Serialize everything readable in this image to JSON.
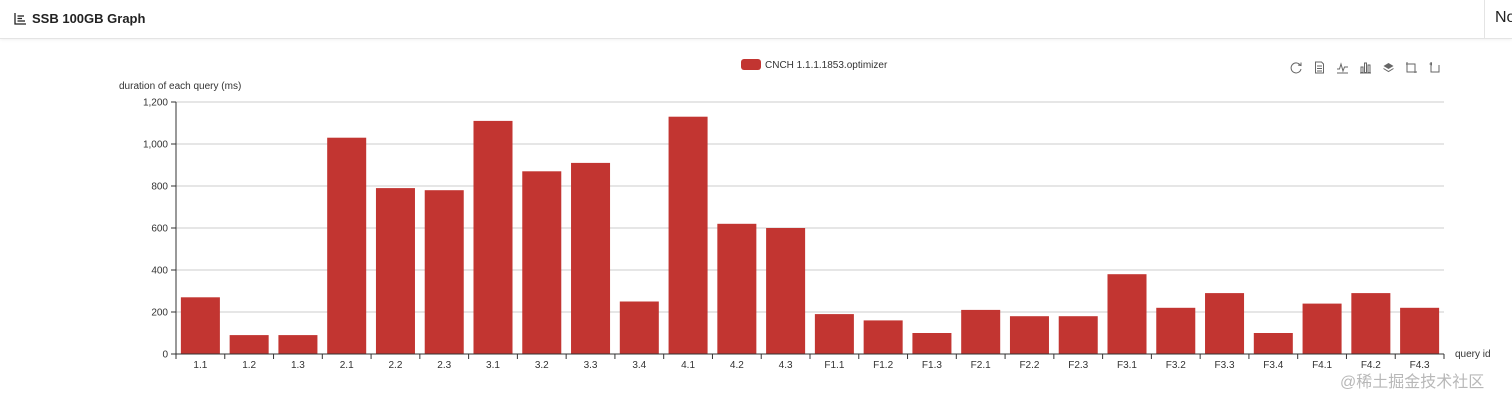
{
  "header": {
    "title": "SSB 100GB Graph",
    "title_icon": "chart-icon",
    "right_text": "No"
  },
  "toolbox": [
    "refresh-icon",
    "data-view-icon",
    "line-chart-icon",
    "bar-chart-icon",
    "stack-icon",
    "zoom-icon",
    "zoom-reset-icon"
  ],
  "watermark": "@稀土掘金技术社区",
  "chart_data": {
    "type": "bar",
    "ylabel": "duration of each query (ms)",
    "xlabel": "query id",
    "ylim": [
      0,
      1200
    ],
    "yticks": [
      "0",
      "200",
      "400",
      "600",
      "800",
      "1,000",
      "1,200"
    ],
    "grid": true,
    "legend_position": "top-center",
    "categories": [
      "1.1",
      "1.2",
      "1.3",
      "2.1",
      "2.2",
      "2.3",
      "3.1",
      "3.2",
      "3.3",
      "3.4",
      "4.1",
      "4.2",
      "4.3",
      "F1.1",
      "F1.2",
      "F1.3",
      "F2.1",
      "F2.2",
      "F2.3",
      "F3.1",
      "F3.2",
      "F3.3",
      "F3.4",
      "F4.1",
      "F4.2",
      "F4.3"
    ],
    "series": [
      {
        "name": "CNCH 1.1.1.1853.optimizer",
        "color": "#c23531",
        "values": [
          270,
          90,
          90,
          1030,
          790,
          780,
          1110,
          870,
          910,
          250,
          1130,
          620,
          600,
          190,
          160,
          100,
          210,
          180,
          180,
          380,
          220,
          290,
          100,
          240,
          290,
          220
        ]
      }
    ]
  }
}
